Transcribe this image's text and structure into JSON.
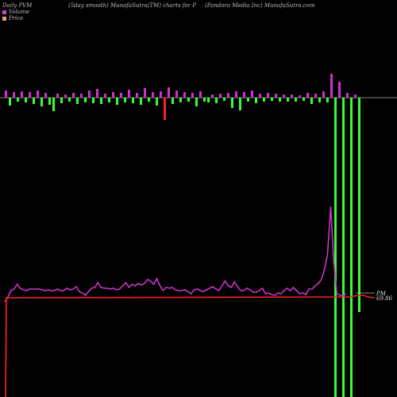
{
  "header": {
    "left": "Daily PVM",
    "middle": "(5day smooth) MunafaSutra(TM) charts for P",
    "right": "(Pandora  Media  Inc) MunafaSutra.com"
  },
  "legend": [
    {
      "label": "Volume",
      "color": "#cc44cc"
    },
    {
      "label": "Price",
      "color": "#e8a070"
    }
  ],
  "colors": {
    "up": "#33ff33",
    "down": "#ff2222",
    "pvm_up": "#cc33cc",
    "pvm_line": "#cc33cc",
    "price": "#ff2222",
    "zero": "#aaaaaa"
  },
  "annotations": {
    "pvm_tag": "PM",
    "price_value": "69.86"
  },
  "chart_data": {
    "type": "bar",
    "volume_bars": {
      "values": [
        9,
        -10,
        7,
        -5,
        8,
        -6,
        7,
        -8,
        9,
        -11,
        6,
        -9,
        -17,
        5,
        -7,
        4,
        -5,
        6,
        -8,
        5,
        -6,
        9,
        -7,
        11,
        -8,
        5,
        -6,
        7,
        -9,
        6,
        -6,
        10,
        -7,
        6,
        -9,
        12,
        -5,
        7,
        -10,
        8,
        -28,
        13,
        -8,
        9,
        -6,
        7,
        -5,
        6,
        -11,
        8,
        -5,
        -6,
        4,
        -7,
        5,
        -4,
        6,
        -13,
        8,
        -16,
        7,
        -5,
        9,
        -7,
        5,
        -5,
        6,
        -4,
        5,
        -5,
        4,
        -5,
        4,
        -5,
        3,
        -4,
        6,
        -8,
        5,
        -6,
        8,
        -6,
        30,
        -420,
        20,
        -420,
        6,
        -420,
        4,
        -270
      ],
      "colors": [
        "up",
        "down",
        "up",
        "down",
        "up",
        "down",
        "up",
        "down",
        "up",
        "down",
        "up",
        "down",
        "down",
        "up",
        "down",
        "up",
        "down",
        "up",
        "down",
        "up",
        "down",
        "up",
        "down",
        "up",
        "down",
        "up",
        "down",
        "up",
        "down",
        "up",
        "down",
        "up",
        "down",
        "up",
        "down",
        "up",
        "down",
        "up",
        "down",
        "up",
        "red",
        "up",
        "down",
        "up",
        "down",
        "up",
        "down",
        "up",
        "down",
        "up",
        "down",
        "down",
        "up",
        "down",
        "up",
        "down",
        "up",
        "down",
        "up",
        "down",
        "up",
        "down",
        "up",
        "down",
        "up",
        "down",
        "up",
        "down",
        "up",
        "down",
        "up",
        "down",
        "up",
        "down",
        "up",
        "down",
        "up",
        "down",
        "up",
        "down",
        "up",
        "down",
        "pvm",
        "down",
        "pvm",
        "down",
        "pvm",
        "down",
        "pvm",
        "down"
      ]
    },
    "pvm_line": [
      380,
      374,
      366,
      364,
      358,
      363,
      365,
      366,
      364,
      364,
      364,
      364,
      365,
      366,
      365,
      366,
      366,
      364,
      366,
      366,
      363,
      365,
      364,
      361,
      367,
      369,
      372,
      367,
      363,
      362,
      356,
      362,
      363,
      363,
      364,
      363,
      365,
      364,
      360,
      356,
      362,
      358,
      360,
      357,
      359,
      357,
      352,
      354,
      358,
      351,
      360,
      366,
      362,
      363,
      362,
      365,
      366,
      366,
      365,
      367,
      370,
      365,
      364,
      366,
      367,
      365,
      363,
      361,
      364,
      366,
      360,
      354,
      360,
      362,
      355,
      361,
      366,
      366,
      363,
      365,
      368,
      368,
      366,
      363,
      370,
      369,
      371,
      372,
      369,
      370,
      366,
      363,
      366,
      362,
      366,
      370,
      369,
      371,
      364,
      364,
      360,
      357,
      352,
      340,
      320,
      260,
      330,
      370,
      372,
      372,
      370
    ],
    "price_line": [
      500,
      375,
      374,
      373,
      372,
      372,
      374,
      375
    ],
    "price_value": 69.86
  }
}
